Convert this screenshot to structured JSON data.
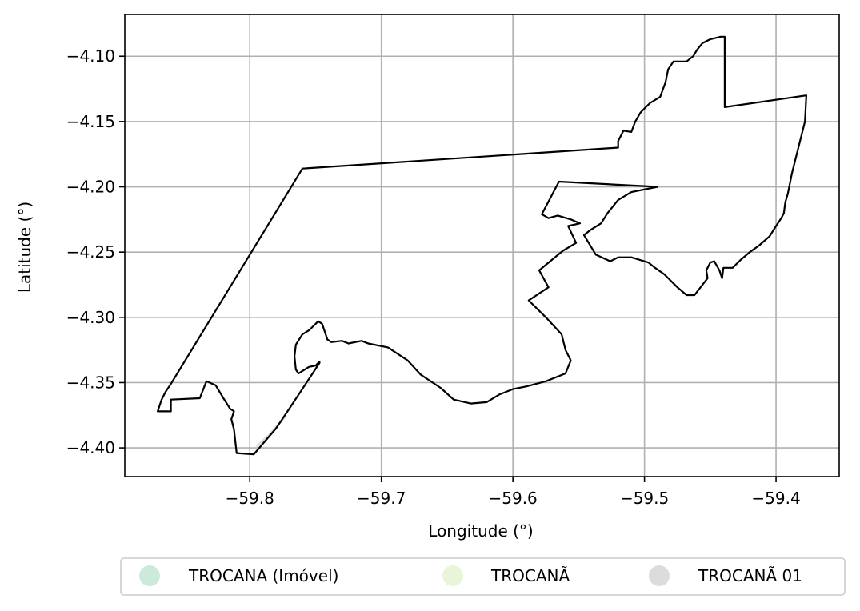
{
  "chart_data": {
    "type": "map",
    "xlabel": "Longitude (°)",
    "ylabel": "Latitude (°)",
    "xlim": [
      -59.895,
      -59.352
    ],
    "ylim": [
      -4.422,
      -4.068
    ],
    "grid": true,
    "x_ticks": [
      {
        "value": -59.8,
        "label": "−59.8"
      },
      {
        "value": -59.7,
        "label": "−59.7"
      },
      {
        "value": -59.6,
        "label": "−59.6"
      },
      {
        "value": -59.5,
        "label": "−59.5"
      },
      {
        "value": -59.4,
        "label": "−59.4"
      }
    ],
    "y_ticks": [
      {
        "value": -4.1,
        "label": "−4.10"
      },
      {
        "value": -4.15,
        "label": "−4.15"
      },
      {
        "value": -4.2,
        "label": "−4.20"
      },
      {
        "value": -4.25,
        "label": "−4.25"
      },
      {
        "value": -4.3,
        "label": "−4.30"
      },
      {
        "value": -4.35,
        "label": "−4.35"
      },
      {
        "value": -4.4,
        "label": "−4.40"
      }
    ],
    "legend": {
      "placement": "bottom-center",
      "entries": [
        {
          "name": "TROCANA (Imóvel)",
          "color": "#cbeadb"
        },
        {
          "name": "TROCANÃ",
          "color": "#e9f5d9"
        },
        {
          "name": "TROCANÃ 01",
          "color": "#dcdcdc"
        }
      ]
    },
    "boundary_color": "#000000",
    "boundary_polygon": [
      [
        -59.87,
        -4.372
      ],
      [
        -59.867,
        -4.363
      ],
      [
        -59.864,
        -4.357
      ],
      [
        -59.86,
        -4.351
      ],
      [
        -59.76,
        -4.186
      ],
      [
        -59.52,
        -4.17
      ],
      [
        -59.52,
        -4.165
      ],
      [
        -59.516,
        -4.157
      ],
      [
        -59.51,
        -4.158
      ],
      [
        -59.507,
        -4.15
      ],
      [
        -59.503,
        -4.143
      ],
      [
        -59.496,
        -4.136
      ],
      [
        -59.488,
        -4.131
      ],
      [
        -59.484,
        -4.12
      ],
      [
        -59.482,
        -4.11
      ],
      [
        -59.478,
        -4.104
      ],
      [
        -59.468,
        -4.104
      ],
      [
        -59.463,
        -4.1
      ],
      [
        -59.46,
        -4.095
      ],
      [
        -59.456,
        -4.09
      ],
      [
        -59.45,
        -4.087
      ],
      [
        -59.442,
        -4.085
      ],
      [
        -59.439,
        -4.085
      ],
      [
        -59.439,
        -4.139
      ],
      [
        -59.377,
        -4.13
      ],
      [
        -59.378,
        -4.15
      ],
      [
        -59.383,
        -4.17
      ],
      [
        -59.388,
        -4.19
      ],
      [
        -59.391,
        -4.205
      ],
      [
        -59.393,
        -4.212
      ],
      [
        -59.394,
        -4.22
      ],
      [
        -59.396,
        -4.224
      ],
      [
        -59.4,
        -4.23
      ],
      [
        -59.405,
        -4.238
      ],
      [
        -59.413,
        -4.245
      ],
      [
        -59.42,
        -4.25
      ],
      [
        -59.427,
        -4.256
      ],
      [
        -59.433,
        -4.262
      ],
      [
        -59.44,
        -4.262
      ],
      [
        -59.441,
        -4.27
      ],
      [
        -59.443,
        -4.264
      ],
      [
        -59.447,
        -4.257
      ],
      [
        -59.45,
        -4.258
      ],
      [
        -59.453,
        -4.264
      ],
      [
        -59.452,
        -4.27
      ],
      [
        -59.462,
        -4.283
      ],
      [
        -59.468,
        -4.283
      ],
      [
        -59.475,
        -4.277
      ],
      [
        -59.485,
        -4.267
      ],
      [
        -59.492,
        -4.262
      ],
      [
        -59.497,
        -4.258
      ],
      [
        -59.51,
        -4.254
      ],
      [
        -59.52,
        -4.254
      ],
      [
        -59.526,
        -4.257
      ],
      [
        -59.537,
        -4.252
      ],
      [
        -59.546,
        -4.237
      ],
      [
        -59.541,
        -4.233
      ],
      [
        -59.533,
        -4.228
      ],
      [
        -59.528,
        -4.22
      ],
      [
        -59.52,
        -4.21
      ],
      [
        -59.51,
        -4.204
      ],
      [
        -59.49,
        -4.2
      ],
      [
        -59.565,
        -4.196
      ],
      [
        -59.578,
        -4.221
      ],
      [
        -59.573,
        -4.224
      ],
      [
        -59.566,
        -4.222
      ],
      [
        -59.556,
        -4.225
      ],
      [
        -59.549,
        -4.228
      ],
      [
        -59.558,
        -4.23
      ],
      [
        -59.552,
        -4.243
      ],
      [
        -59.562,
        -4.249
      ],
      [
        -59.58,
        -4.264
      ],
      [
        -59.573,
        -4.277
      ],
      [
        -59.588,
        -4.287
      ],
      [
        -59.575,
        -4.3
      ],
      [
        -59.563,
        -4.313
      ],
      [
        -59.56,
        -4.325
      ],
      [
        -59.556,
        -4.333
      ],
      [
        -59.56,
        -4.343
      ],
      [
        -59.575,
        -4.349
      ],
      [
        -59.59,
        -4.353
      ],
      [
        -59.6,
        -4.355
      ],
      [
        -59.61,
        -4.359
      ],
      [
        -59.62,
        -4.365
      ],
      [
        -59.632,
        -4.366
      ],
      [
        -59.645,
        -4.363
      ],
      [
        -59.655,
        -4.354
      ],
      [
        -59.67,
        -4.344
      ],
      [
        -59.68,
        -4.333
      ],
      [
        -59.695,
        -4.323
      ],
      [
        -59.71,
        -4.32
      ],
      [
        -59.715,
        -4.318
      ],
      [
        -59.725,
        -4.32
      ],
      [
        -59.73,
        -4.318
      ],
      [
        -59.738,
        -4.319
      ],
      [
        -59.741,
        -4.317
      ],
      [
        -59.743,
        -4.311
      ],
      [
        -59.745,
        -4.305
      ],
      [
        -59.748,
        -4.303
      ],
      [
        -59.755,
        -4.31
      ],
      [
        -59.76,
        -4.313
      ],
      [
        -59.765,
        -4.321
      ],
      [
        -59.766,
        -4.33
      ],
      [
        -59.765,
        -4.34
      ],
      [
        -59.763,
        -4.343
      ],
      [
        -59.755,
        -4.338
      ],
      [
        -59.75,
        -4.337
      ],
      [
        -59.747,
        -4.334
      ],
      [
        -59.747,
        -4.335
      ],
      [
        -59.77,
        -4.37
      ],
      [
        -59.78,
        -4.385
      ],
      [
        -59.797,
        -4.405
      ],
      [
        -59.81,
        -4.404
      ],
      [
        -59.812,
        -4.386
      ],
      [
        -59.814,
        -4.378
      ],
      [
        -59.812,
        -4.372
      ],
      [
        -59.815,
        -4.37
      ],
      [
        -59.82,
        -4.362
      ],
      [
        -59.826,
        -4.352
      ],
      [
        -59.833,
        -4.349
      ],
      [
        -59.838,
        -4.362
      ],
      [
        -59.86,
        -4.363
      ],
      [
        -59.86,
        -4.372
      ],
      [
        -59.87,
        -4.372
      ]
    ],
    "secondary_feature": [
      [
        -59.795,
        -4.399
      ],
      [
        -59.787,
        -4.392
      ],
      [
        -59.78,
        -4.384
      ],
      [
        -59.773,
        -4.376
      ]
    ]
  }
}
